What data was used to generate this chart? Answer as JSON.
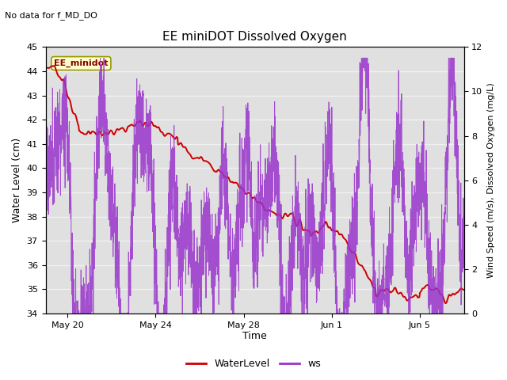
{
  "title": "EE miniDOT Dissolved Oxygen",
  "top_left_note": "No data for f_MD_DO",
  "legend_box_label": "EE_minidot",
  "xlabel": "Time",
  "ylabel_left": "Water Level (cm)",
  "ylabel_right": "Wind Speed (m/s), Dissolved Oxygen (mg/L)",
  "ylim_left": [
    34.0,
    45.0
  ],
  "ylim_right": [
    0,
    12
  ],
  "yticks_left": [
    34.0,
    35.0,
    36.0,
    37.0,
    38.0,
    39.0,
    40.0,
    41.0,
    42.0,
    43.0,
    44.0,
    45.0
  ],
  "yticks_right": [
    0,
    2,
    4,
    6,
    8,
    10,
    12
  ],
  "background_color": "#ffffff",
  "plot_bg_color": "#e0e0e0",
  "grid_color": "#f0f0f0",
  "wl_color": "#cc0000",
  "ws_color": "#9933cc",
  "legend_entries": [
    "WaterLevel",
    "ws"
  ],
  "legend_colors": [
    "#cc0000",
    "#9933cc"
  ],
  "xtick_labels": [
    "May 20",
    "May 24",
    "May 28",
    "Jun 1",
    "Jun 5"
  ],
  "figsize": [
    6.4,
    4.8
  ],
  "dpi": 100
}
